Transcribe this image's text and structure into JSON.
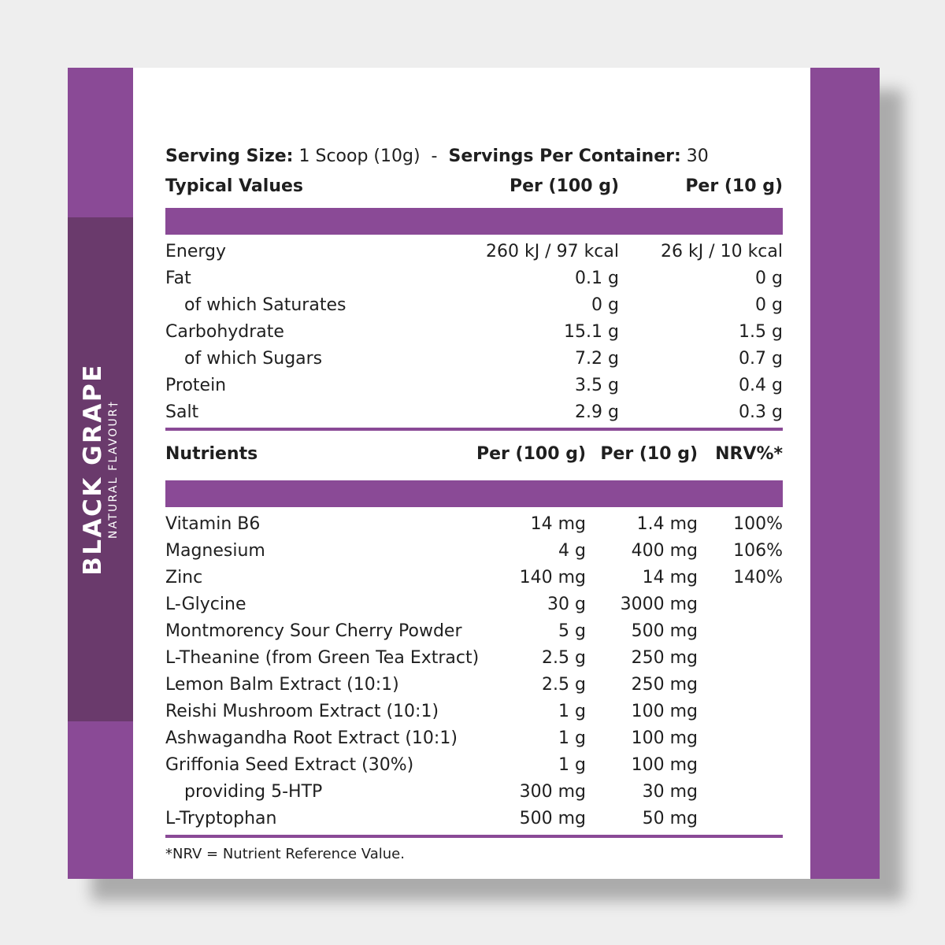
{
  "flavour": {
    "name": "BLACK GRAPE",
    "subtitle": "NATURAL FLAVOUR†"
  },
  "serving": {
    "size_label": "Serving Size:",
    "size_value": "1 Scoop (10g)",
    "separator": "-",
    "per_container_label": "Servings Per Container:",
    "per_container_value": "30"
  },
  "typical": {
    "headers": [
      "Typical Values",
      "Per (100 g)",
      "Per (10 g)"
    ],
    "rows": [
      {
        "name": "Energy",
        "per100": "260 kJ / 97 kcal",
        "per10": "26 kJ / 10 kcal"
      },
      {
        "name": "Fat",
        "per100": "0.1 g",
        "per10": "0 g"
      },
      {
        "name": "of which Saturates",
        "per100": "0 g",
        "per10": "0 g"
      },
      {
        "name": "Carbohydrate",
        "per100": "15.1 g",
        "per10": "1.5 g"
      },
      {
        "name": "of which Sugars",
        "per100": "7.2 g",
        "per10": "0.7 g"
      },
      {
        "name": "Protein",
        "per100": "3.5 g",
        "per10": "0.4 g"
      },
      {
        "name": "Salt",
        "per100": "2.9 g",
        "per10": "0.3 g"
      }
    ]
  },
  "nutrients": {
    "headers": [
      "Nutrients",
      "Per (100 g)",
      "Per (10 g)",
      "NRV%*"
    ],
    "rows": [
      {
        "name": "Vitamin B6",
        "per100": "14 mg",
        "per10": "1.4 mg",
        "nrv": "100%"
      },
      {
        "name": "Magnesium",
        "per100": "4 g",
        "per10": "400 mg",
        "nrv": "106%"
      },
      {
        "name": "Zinc",
        "per100": "140 mg",
        "per10": "14 mg",
        "nrv": "140%"
      },
      {
        "name": "L-Glycine",
        "per100": "30 g",
        "per10": "3000 mg",
        "nrv": ""
      },
      {
        "name": "Montmorency Sour Cherry Powder",
        "per100": "5 g",
        "per10": "500 mg",
        "nrv": ""
      },
      {
        "name": "L-Theanine (from Green Tea Extract)",
        "per100": "2.5 g",
        "per10": "250 mg",
        "nrv": ""
      },
      {
        "name": "Lemon Balm Extract (10:1)",
        "per100": "2.5 g",
        "per10": "250 mg",
        "nrv": ""
      },
      {
        "name": "Reishi Mushroom Extract (10:1)",
        "per100": "1 g",
        "per10": "100 mg",
        "nrv": ""
      },
      {
        "name": "Ashwagandha Root Extract (10:1)",
        "per100": "1 g",
        "per10": "100 mg",
        "nrv": ""
      },
      {
        "name": "Griffonia Seed Extract (30%)",
        "per100": "1 g",
        "per10": "100 mg",
        "nrv": ""
      },
      {
        "name": "providing 5-HTP",
        "per100": "300 mg",
        "per10": "30 mg",
        "nrv": ""
      },
      {
        "name": "L-Tryptophan",
        "per100": "500 mg",
        "per10": "50 mg",
        "nrv": ""
      }
    ]
  },
  "footnote": "*NRV = Nutrient Reference Value.",
  "colors": {
    "accent": "#8a4a96",
    "accent_dark": "#6a3a6c",
    "background": "#eeeeee"
  }
}
